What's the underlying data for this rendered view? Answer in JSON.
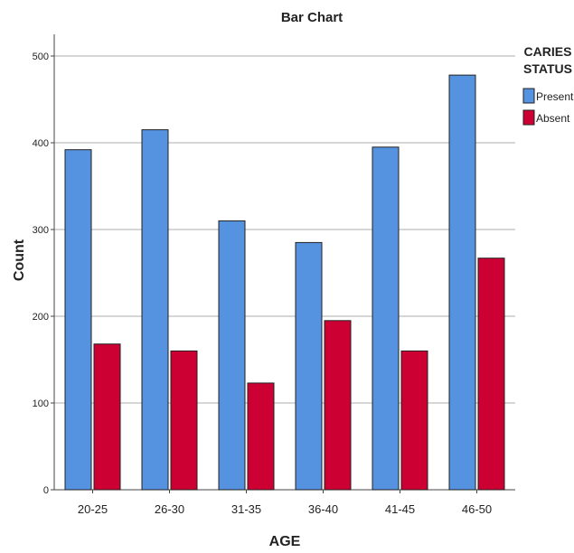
{
  "chart_data": {
    "type": "bar",
    "title": "Bar Chart",
    "xlabel": "AGE",
    "ylabel": "Count",
    "categories": [
      "20-25",
      "26-30",
      "31-35",
      "36-40",
      "41-45",
      "46-50"
    ],
    "series": [
      {
        "name": "Present",
        "values": [
          392,
          415,
          310,
          285,
          395,
          478
        ],
        "color": "#5592df"
      },
      {
        "name": "Absent",
        "values": [
          168,
          160,
          123,
          195,
          160,
          267
        ],
        "color": "#cc0033"
      }
    ],
    "ylim": [
      0,
      500
    ],
    "yticks": [
      0,
      100,
      200,
      300,
      400,
      500
    ],
    "grid": true,
    "legend": {
      "title_lines": [
        "CARIES",
        "STATUS"
      ],
      "placement": "top-right"
    }
  }
}
